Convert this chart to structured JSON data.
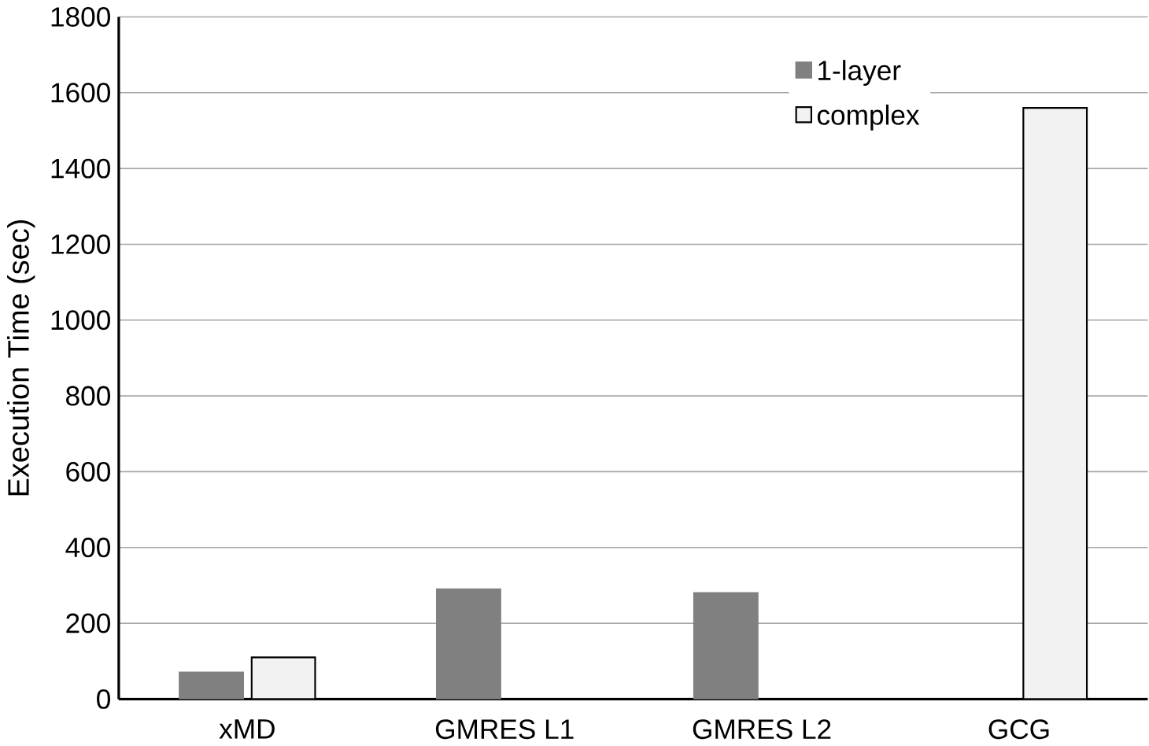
{
  "chart_data": {
    "type": "bar",
    "ylabel": "Execution Time (sec)",
    "categories": [
      "xMD",
      "GMRES L1",
      "GMRES L2",
      "GCG"
    ],
    "series": [
      {
        "name": "1-layer",
        "color": "#808080",
        "values": [
          70,
          290,
          280,
          null
        ]
      },
      {
        "name": "complex",
        "color": "#f2f2f2",
        "values": [
          110,
          null,
          null,
          1560
        ]
      }
    ],
    "ylim": [
      0,
      1800
    ],
    "yticks": [
      0,
      200,
      400,
      600,
      800,
      1000,
      1200,
      1400,
      1600,
      1800
    ],
    "grid": "y",
    "legend": "top right"
  }
}
